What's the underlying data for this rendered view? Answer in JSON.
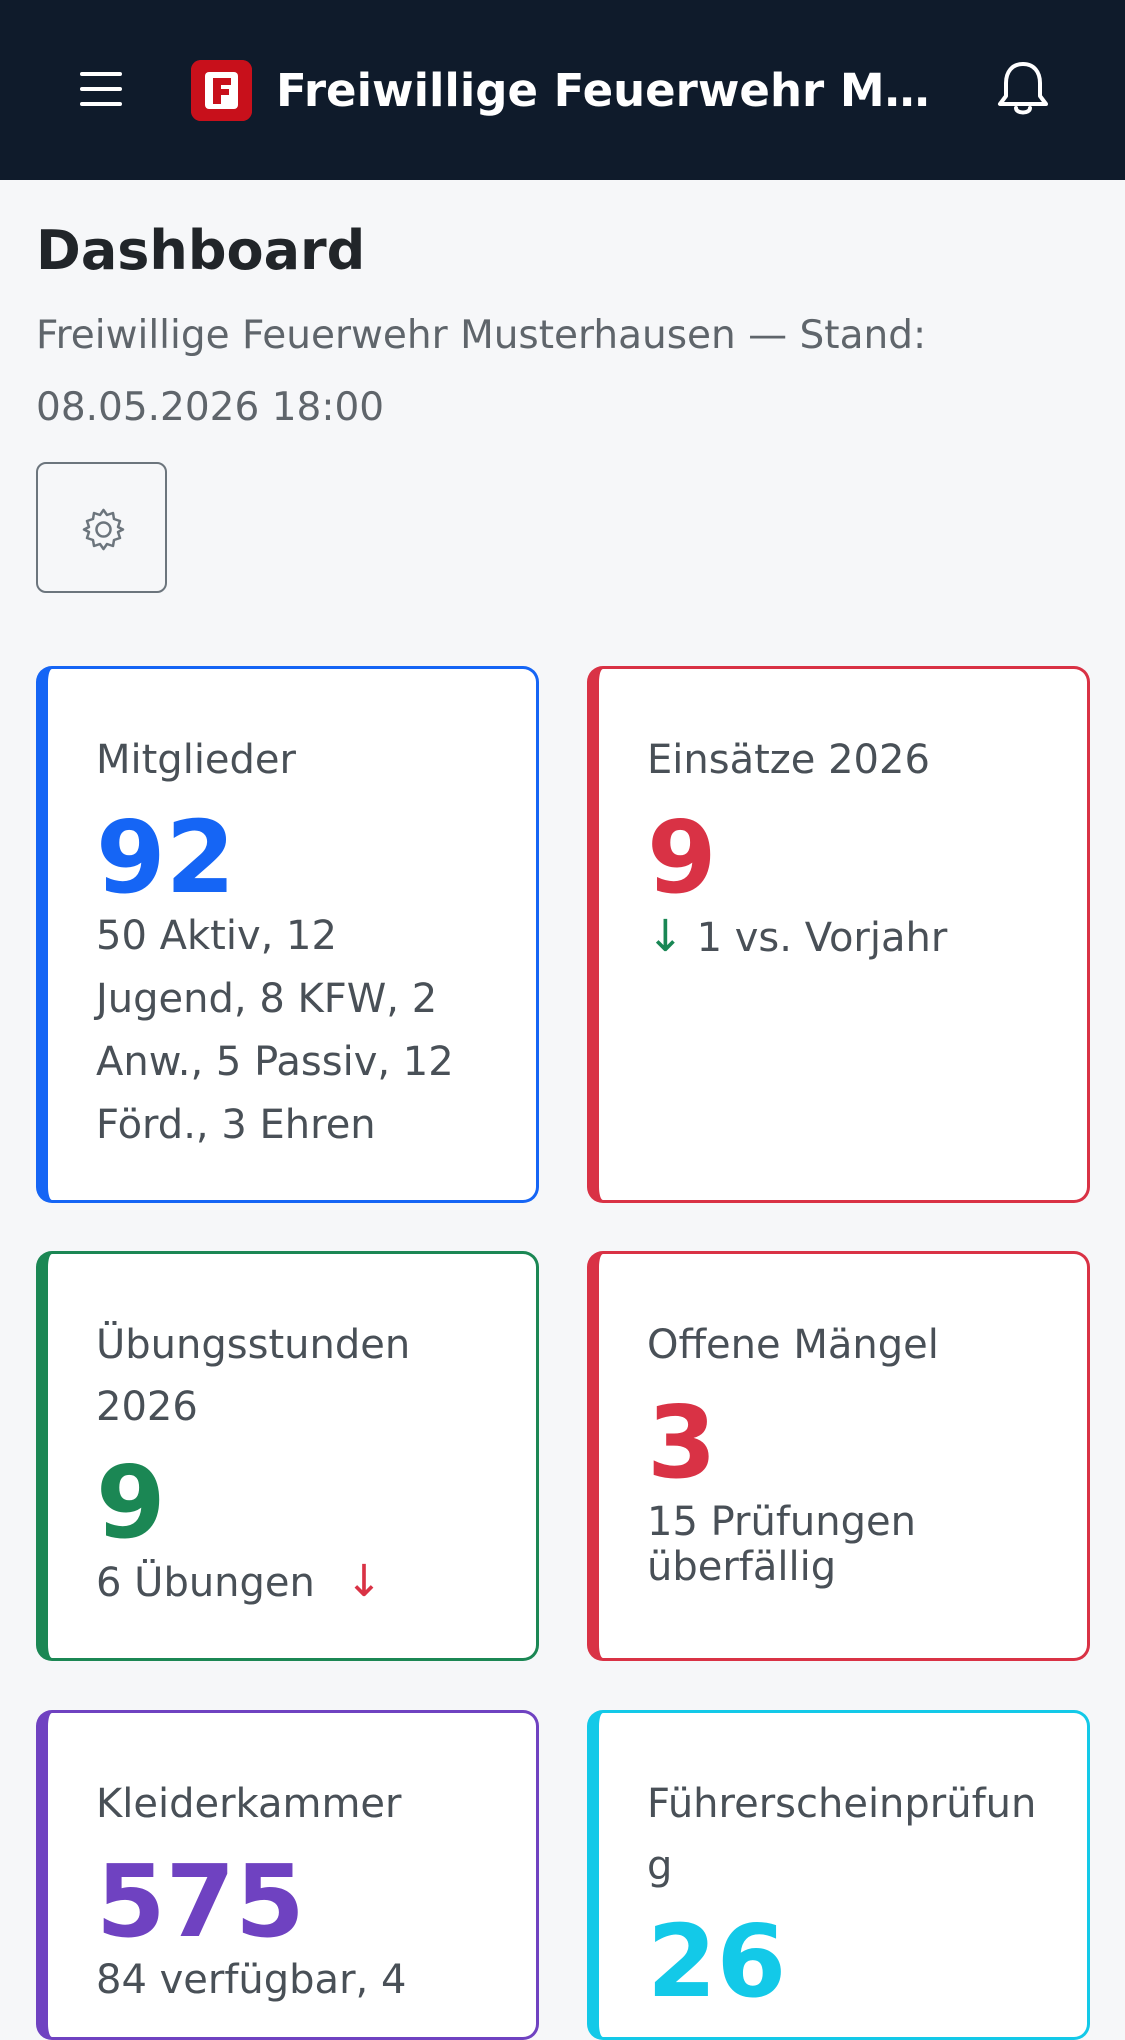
{
  "header": {
    "logo_letter": "F",
    "title": "Freiwillige Feuerwehr Musterhausen",
    "icons": [
      "menu-icon",
      "bell-icon"
    ]
  },
  "page": {
    "title": "Dashboard",
    "subtitle_line1": "Freiwillige Feuerwehr Musterhausen — Stand:",
    "subtitle_line2": "08.05.2026 18:00",
    "settings_icon": "gear-icon"
  },
  "cards": [
    {
      "label": "Mitglieder",
      "value": "92",
      "desc": "50 Aktiv, 12 Jugend, 8 KFW, 2 Anw., 5 Passiv, 12 Förd., 3 Ehren",
      "color": "#1565f5"
    },
    {
      "label": "Einsätze 2026",
      "value": "9",
      "trend_arrow": "↓",
      "desc": "1 vs. Vorjahr",
      "color": "#d93245",
      "trend_color": "#198754"
    },
    {
      "label": "Übungsstunden 2026",
      "value": "9",
      "desc": "6 Übungen",
      "trend_arrow": "↓",
      "color": "#1b8754",
      "trend_color": "#d93245"
    },
    {
      "label": "Offene Mängel",
      "value": "3",
      "desc": "15 Prüfungen überfällig",
      "color": "#d93245"
    },
    {
      "label": "Kleiderkammer",
      "value": "575",
      "desc": "84 verfügbar, 4",
      "color": "#6f42c1"
    },
    {
      "label": "Führerscheinprüfung",
      "value": "26",
      "color": "#13c9e8"
    }
  ]
}
